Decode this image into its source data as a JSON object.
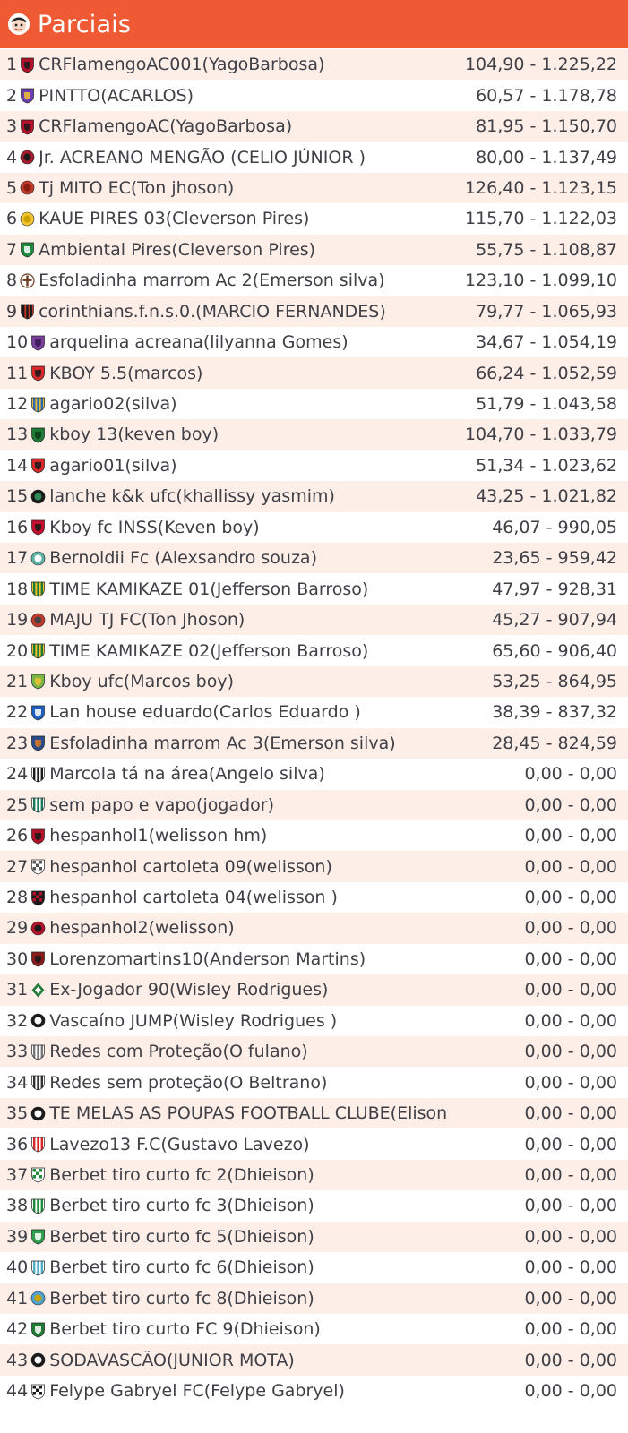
{
  "header": {
    "title": "Parciais",
    "logo_icon": "mascot-logo-icon",
    "background": "#ef5a35"
  },
  "row_colors": {
    "odd": "#fdeee8",
    "even": "#ffffff",
    "text": "#3f3f46"
  },
  "rows": [
    {
      "rank": "1",
      "team": "CRFlamengoAC001(YagoBarbosa)",
      "score": "104,90 - 1.225,22",
      "icon": "shield-icon",
      "colors": [
        "#b3122a",
        "#1a1a1a"
      ]
    },
    {
      "rank": "2",
      "team": "PINTTO(ACARLOS)",
      "score": "60,57 - 1.178,78",
      "icon": "shield-icon",
      "colors": [
        "#6a3fb5",
        "#f2c230"
      ]
    },
    {
      "rank": "3",
      "team": "CRFlamengoAC(YagoBarbosa)",
      "score": "81,95 - 1.150,70",
      "icon": "shield-icon",
      "colors": [
        "#b3122a",
        "#1a1a1a"
      ]
    },
    {
      "rank": "4",
      "team": "Jr. ACREANO MENGÃO (CELIO JÚNIOR )",
      "score": "80,00 - 1.137,49",
      "icon": "round-crest-icon",
      "colors": [
        "#a51c2c",
        "#1a1a1a"
      ]
    },
    {
      "rank": "5",
      "team": "Tj MITO EC(Ton jhoson)",
      "score": "126,40 - 1.123,15",
      "icon": "round-crest-icon",
      "colors": [
        "#c0392b",
        "#8a1c12"
      ]
    },
    {
      "rank": "6",
      "team": "KAUE PIRES 03(Cleverson Pires)",
      "score": "115,70 - 1.122,03",
      "icon": "round-crest-icon",
      "colors": [
        "#f4c430",
        "#c9a100"
      ]
    },
    {
      "rank": "7",
      "team": "Ambiental Pires(Cleverson Pires)",
      "score": "55,75 - 1.108,87",
      "icon": "shield-icon",
      "colors": [
        "#1e8a3c",
        "#ffffff"
      ]
    },
    {
      "rank": "8",
      "team": "Esfoladinha marrom Ac 2(Emerson silva)",
      "score": "123,10 - 1.099,10",
      "icon": "cross-crest-icon",
      "colors": [
        "#ffffff",
        "#6b3a1f"
      ]
    },
    {
      "rank": "9",
      "team": "corinthians.f.n.s.0.(MARCIO FERNANDES)",
      "score": "79,77 - 1.065,93",
      "icon": "striped-shield-icon",
      "colors": [
        "#1a1a1a",
        "#c0392b"
      ]
    },
    {
      "rank": "10",
      "team": "arquelina acreana(lilyanna Gomes)",
      "score": "34,67 - 1.054,19",
      "icon": "shield-icon",
      "colors": [
        "#7b3fa0",
        "#3a1a55"
      ]
    },
    {
      "rank": "11",
      "team": "KBOY 5.5(marcos)",
      "score": "66,24 - 1.052,59",
      "icon": "shield-icon",
      "colors": [
        "#d62828",
        "#1a1a1a"
      ]
    },
    {
      "rank": "12",
      "team": "agario02(silva)",
      "score": "51,79 - 1.043,58",
      "icon": "striped-shield-icon",
      "colors": [
        "#2b6cb0",
        "#e2b93b"
      ]
    },
    {
      "rank": "13",
      "team": "kboy 13(keven boy)",
      "score": "104,70 - 1.033,79",
      "icon": "shield-icon",
      "colors": [
        "#1e7a34",
        "#0c3d18"
      ]
    },
    {
      "rank": "14",
      "team": "agario01(silva)",
      "score": "51,34 - 1.023,62",
      "icon": "shield-icon",
      "colors": [
        "#d62828",
        "#1a1a1a"
      ]
    },
    {
      "rank": "15",
      "team": "lanche k&k ufc(khallissy yasmim)",
      "score": "43,25 - 1.021,82",
      "icon": "round-crest-icon",
      "colors": [
        "#1a1a1a",
        "#2e8b57"
      ]
    },
    {
      "rank": "16",
      "team": "Kboy fc INSS(Keven boy)",
      "score": "46,07 - 990,05",
      "icon": "shield-icon",
      "colors": [
        "#c8102e",
        "#1a1a1a"
      ]
    },
    {
      "rank": "17",
      "team": "Bernoldii Fc (Alexsandro souza)",
      "score": "23,65 - 959,42",
      "icon": "round-crest-icon",
      "colors": [
        "#5fb3a5",
        "#ffffff"
      ]
    },
    {
      "rank": "18",
      "team": "TIME KAMIKAZE 01(Jefferson Barroso)",
      "score": "47,97 - 928,31",
      "icon": "striped-shield-icon",
      "colors": [
        "#1e7a34",
        "#f2c230"
      ]
    },
    {
      "rank": "19",
      "team": "MAJU TJ FC(Ton Jhoson)",
      "score": "45,27 - 907,94",
      "icon": "round-crest-icon",
      "colors": [
        "#c0392b",
        "#444444"
      ]
    },
    {
      "rank": "20",
      "team": "TIME KAMIKAZE 02(Jefferson Barroso)",
      "score": "65,60 - 906,40",
      "icon": "striped-shield-icon",
      "colors": [
        "#1e7a34",
        "#f2c230"
      ]
    },
    {
      "rank": "21",
      "team": "Kboy ufc(Marcos boy)",
      "score": "53,25 - 864,95",
      "icon": "shield-icon",
      "colors": [
        "#7ab648",
        "#f2c230"
      ]
    },
    {
      "rank": "22",
      "team": "Lan house eduardo(Carlos Eduardo )",
      "score": "38,39 - 837,32",
      "icon": "shield-icon",
      "colors": [
        "#1f5fbf",
        "#ffffff"
      ]
    },
    {
      "rank": "23",
      "team": "Esfoladinha marrom Ac 3(Emerson silva)",
      "score": "28,45 - 824,59",
      "icon": "shield-icon",
      "colors": [
        "#2b4c8c",
        "#e07b1f"
      ]
    },
    {
      "rank": "24",
      "team": "Marcola tá na área(Angelo silva)",
      "score": "0,00 - 0,00",
      "icon": "striped-shield-icon",
      "colors": [
        "#1a1a1a",
        "#ffffff"
      ]
    },
    {
      "rank": "25",
      "team": "sem papo e vapo(jogador)",
      "score": "0,00 - 0,00",
      "icon": "striped-shield-icon",
      "colors": [
        "#1a7a5a",
        "#ffffff"
      ]
    },
    {
      "rank": "26",
      "team": "hespanhol1(welisson hm)",
      "score": "0,00 - 0,00",
      "icon": "shield-icon",
      "colors": [
        "#b3122a",
        "#1a1a1a"
      ]
    },
    {
      "rank": "27",
      "team": "hespanhol cartoleta 09(welisson)",
      "score": "0,00 - 0,00",
      "icon": "checkered-shield-icon",
      "colors": [
        "#555555",
        "#ffffff"
      ]
    },
    {
      "rank": "28",
      "team": "hespanhol cartoleta 04(welisson )",
      "score": "0,00 - 0,00",
      "icon": "checkered-shield-icon",
      "colors": [
        "#b3122a",
        "#1a1a1a"
      ]
    },
    {
      "rank": "29",
      "team": "hespanhol2(welisson)",
      "score": "0,00 - 0,00",
      "icon": "round-crest-icon",
      "colors": [
        "#b3122a",
        "#1a1a1a"
      ]
    },
    {
      "rank": "30",
      "team": "Lorenzomartins10(Anderson Martins)",
      "score": "0,00 - 0,00",
      "icon": "shield-icon",
      "colors": [
        "#8b1a1a",
        "#1a1a1a"
      ]
    },
    {
      "rank": "31",
      "team": "Ex-Jogador 90(Wisley Rodrigues)",
      "score": "0,00 - 0,00",
      "icon": "diamond-crest-icon",
      "colors": [
        "#1e7a34",
        "#ffffff"
      ]
    },
    {
      "rank": "32",
      "team": "Vascaíno JUMP(Wisley Rodrigues )",
      "score": "0,00 - 0,00",
      "icon": "round-crest-icon",
      "colors": [
        "#1a1a1a",
        "#ffffff"
      ]
    },
    {
      "rank": "33",
      "team": "Redes com Proteção(O fulano)",
      "score": "0,00 - 0,00",
      "icon": "striped-shield-icon",
      "colors": [
        "#777777",
        "#ffffff"
      ]
    },
    {
      "rank": "34",
      "team": "Redes sem proteção(O Beltrano)",
      "score": "0,00 - 0,00",
      "icon": "striped-shield-icon",
      "colors": [
        "#333333",
        "#ffffff"
      ]
    },
    {
      "rank": "35",
      "team": "TE MELAS AS POUPAS FOOTBALL CLUBE(Elison",
      "score": "0,00 - 0,00",
      "icon": "round-crest-icon",
      "colors": [
        "#1a1a1a",
        "#ffffff"
      ]
    },
    {
      "rank": "36",
      "team": "Lavezo13 F.C(Gustavo Lavezo)",
      "score": "0,00 - 0,00",
      "icon": "striped-shield-icon",
      "colors": [
        "#d62828",
        "#ffffff"
      ]
    },
    {
      "rank": "37",
      "team": "Berbet tiro curto fc 2(Dhieison)",
      "score": "0,00 - 0,00",
      "icon": "checkered-shield-icon",
      "colors": [
        "#1e8a3c",
        "#ffffff"
      ]
    },
    {
      "rank": "38",
      "team": "Berbet tiro curto fc 3(Dhieison)",
      "score": "0,00 - 0,00",
      "icon": "striped-shield-icon",
      "colors": [
        "#1e8a3c",
        "#ffffff"
      ]
    },
    {
      "rank": "39",
      "team": "Berbet tiro curto fc 5(Dhieison)",
      "score": "0,00 - 0,00",
      "icon": "shield-icon",
      "colors": [
        "#2e9e4f",
        "#ffffff"
      ]
    },
    {
      "rank": "40",
      "team": "Berbet tiro curto fc 6(Dhieison)",
      "score": "0,00 - 0,00",
      "icon": "striped-shield-icon",
      "colors": [
        "#4fb0c6",
        "#ffffff"
      ]
    },
    {
      "rank": "41",
      "team": "Berbet tiro curto fc 8(Dhieison)",
      "score": "0,00 - 0,00",
      "icon": "round-crest-icon",
      "colors": [
        "#4fa3d1",
        "#c9a100"
      ]
    },
    {
      "rank": "42",
      "team": "Berbet tiro curto FC 9(Dhieison)",
      "score": "0,00 - 0,00",
      "icon": "shield-icon",
      "colors": [
        "#1e7a34",
        "#ffffff"
      ]
    },
    {
      "rank": "43",
      "team": "SODAVASCÃO(JUNIOR MOTA)",
      "score": "0,00 - 0,00",
      "icon": "round-crest-icon",
      "colors": [
        "#1a1a1a",
        "#ffffff"
      ]
    },
    {
      "rank": "44",
      "team": "Felype Gabryel FC(Felype Gabryel)",
      "score": "0,00 - 0,00",
      "icon": "checkered-shield-icon",
      "colors": [
        "#1a1a1a",
        "#ffffff"
      ]
    }
  ]
}
